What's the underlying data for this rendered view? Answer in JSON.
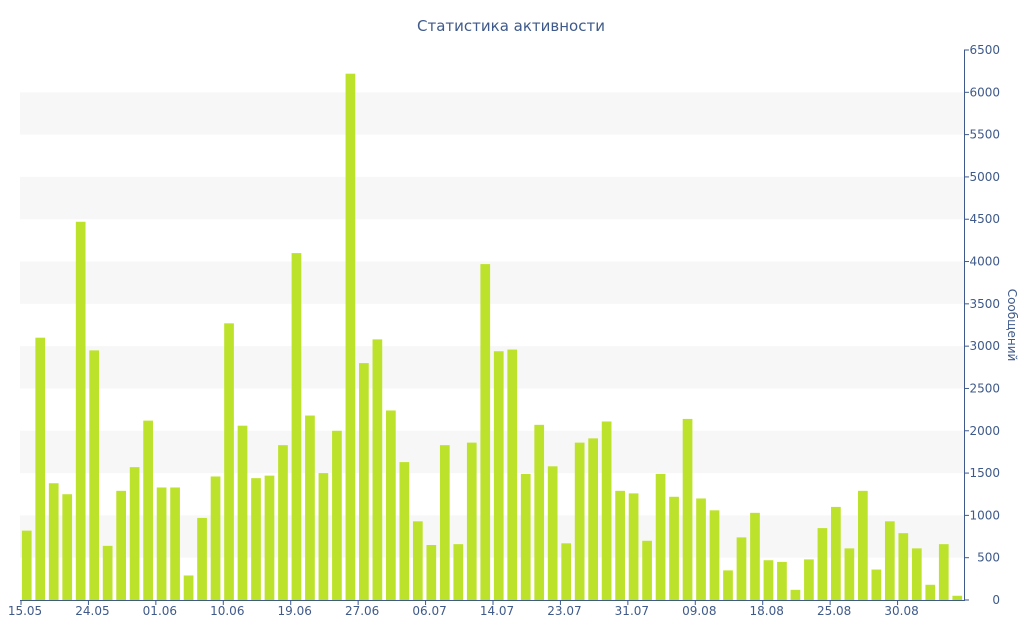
{
  "chart_data": {
    "type": "bar",
    "title": "Статистика активности",
    "xlabel": "",
    "ylabel": "Сообщений",
    "ylim": [
      0,
      6500
    ],
    "y_axis_position": "right",
    "grid": "alternating-bands",
    "legend": "none",
    "bar_color": "#bde22c",
    "band_color": "#f7f7f7",
    "text_color": "#3f5a8a",
    "y_ticks": [
      0,
      500,
      1000,
      1500,
      2000,
      2500,
      3000,
      3500,
      4000,
      4500,
      5000,
      5500,
      6000,
      6500
    ],
    "x_tick_labels": [
      {
        "index": 0,
        "label": "15.05"
      },
      {
        "index": 5,
        "label": "24.05"
      },
      {
        "index": 10,
        "label": "01.06"
      },
      {
        "index": 15,
        "label": "10.06"
      },
      {
        "index": 20,
        "label": "19.06"
      },
      {
        "index": 25,
        "label": "27.06"
      },
      {
        "index": 30,
        "label": "06.07"
      },
      {
        "index": 35,
        "label": "14.07"
      },
      {
        "index": 40,
        "label": "23.07"
      },
      {
        "index": 45,
        "label": "31.07"
      },
      {
        "index": 50,
        "label": "09.08"
      },
      {
        "index": 55,
        "label": "18.08"
      },
      {
        "index": 60,
        "label": "25.08"
      },
      {
        "index": 65,
        "label": "30.08"
      }
    ],
    "values": [
      820,
      3100,
      1380,
      1250,
      4470,
      2950,
      640,
      1290,
      1570,
      2120,
      1330,
      1330,
      290,
      970,
      1460,
      3270,
      2060,
      1440,
      1470,
      1830,
      4100,
      2180,
      1500,
      2000,
      6220,
      2800,
      3080,
      2240,
      1630,
      930,
      650,
      1830,
      660,
      1860,
      3970,
      2940,
      2960,
      1490,
      2070,
      1580,
      670,
      1860,
      1910,
      2110,
      1290,
      1260,
      700,
      1490,
      1220,
      2140,
      1200,
      1060,
      350,
      740,
      1030,
      470,
      450,
      120,
      480,
      850,
      1100,
      610,
      1290,
      360,
      930,
      790,
      610,
      180,
      660,
      50
    ]
  }
}
